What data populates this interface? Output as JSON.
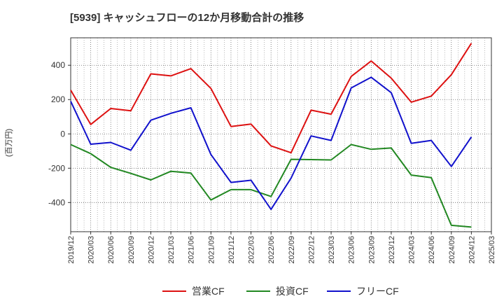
{
  "chart_data": {
    "type": "line",
    "title": "[5939]  キャッシュフローの12か月移動合計の推移",
    "ylabel": "(百万円)",
    "xlabel": "",
    "ylim": [
      -570,
      560
    ],
    "yticks": [
      -400,
      -200,
      0,
      200,
      400
    ],
    "grid": true,
    "legend_position": "bottom",
    "categories": [
      "2019/12",
      "2020/03",
      "2020/06",
      "2020/09",
      "2020/12",
      "2021/03",
      "2021/06",
      "2021/09",
      "2021/12",
      "2022/03",
      "2022/06",
      "2022/09",
      "2022/12",
      "2023/03",
      "2023/06",
      "2023/09",
      "2023/12",
      "2024/03",
      "2024/06",
      "2024/09",
      "2024/12",
      "2025/03"
    ],
    "series": [
      {
        "name": "営業CF",
        "color": "#dd1111",
        "values": [
          255,
          55,
          148,
          135,
          350,
          338,
          380,
          265,
          43,
          57,
          -70,
          -110,
          138,
          115,
          335,
          425,
          325,
          185,
          220,
          345,
          528,
          null
        ]
      },
      {
        "name": "投資CF",
        "color": "#228822",
        "values": [
          -62,
          -115,
          -195,
          -230,
          -268,
          -218,
          -228,
          -385,
          -325,
          -325,
          -365,
          -148,
          -150,
          -152,
          -62,
          -90,
          -82,
          -240,
          -255,
          -533,
          -543,
          null
        ]
      },
      {
        "name": "フリーCF",
        "color": "#1111cc",
        "values": [
          190,
          -60,
          -50,
          -95,
          80,
          120,
          152,
          -120,
          -283,
          -270,
          -440,
          -258,
          -12,
          -38,
          268,
          330,
          240,
          -55,
          -38,
          -190,
          -18,
          null
        ]
      }
    ]
  }
}
